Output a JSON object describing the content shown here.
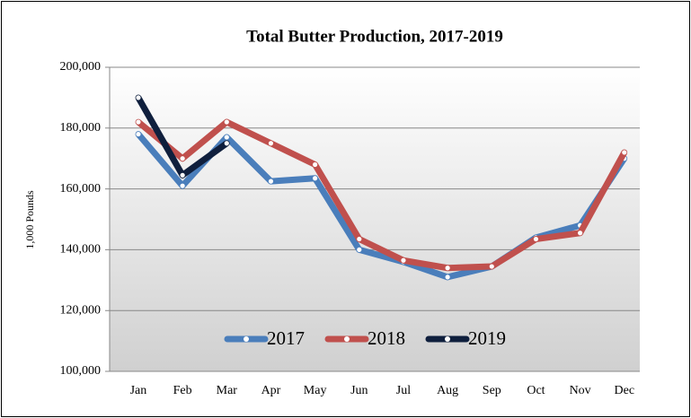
{
  "chart_data": {
    "type": "line",
    "title": "Total Butter Production, 2017-2019",
    "y_label": "1,000 Pounds",
    "categories": [
      "Jan",
      "Feb",
      "Mar",
      "Apr",
      "May",
      "Jun",
      "Jul",
      "Aug",
      "Sep",
      "Oct",
      "Nov",
      "Dec"
    ],
    "series": [
      {
        "name": "2017",
        "color": "#4a7ebb",
        "values": [
          178000,
          161000,
          177000,
          162500,
          163500,
          140000,
          136000,
          131000,
          134500,
          144000,
          148000,
          170000
        ]
      },
      {
        "name": "2018",
        "color": "#c0504d",
        "values": [
          182000,
          170000,
          182000,
          175000,
          168000,
          143500,
          136500,
          134000,
          134500,
          143500,
          145500,
          172000
        ]
      },
      {
        "name": "2019",
        "color": "#0f1f3d",
        "values": [
          190000,
          164500,
          175000,
          null,
          null,
          null,
          null,
          null,
          null,
          null,
          null,
          null
        ]
      }
    ],
    "ylim": [
      100000,
      200000
    ],
    "yticks": [
      {
        "value": 100000,
        "label": "100,000"
      },
      {
        "value": 120000,
        "label": "120,000"
      },
      {
        "value": 140000,
        "label": "140,000"
      },
      {
        "value": 160000,
        "label": "160,000"
      },
      {
        "value": 180000,
        "label": "180,000"
      },
      {
        "value": 200000,
        "label": "200,000"
      }
    ],
    "grid": true,
    "legend": "bottom"
  }
}
